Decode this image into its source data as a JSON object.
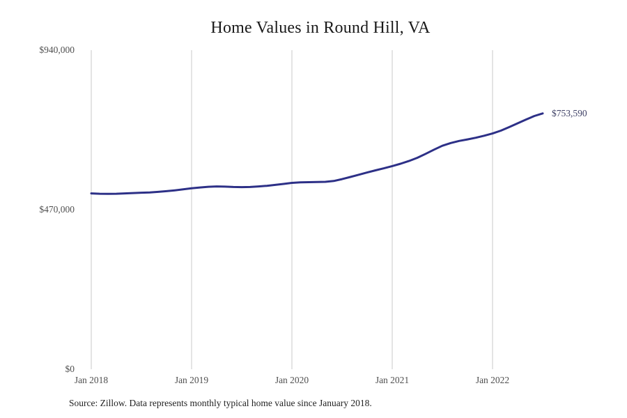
{
  "title": "Home Values in Round Hill, VA",
  "source_note": "Source: Zillow. Data represents monthly typical home value since January 2018.",
  "colors": {
    "line": "#2d3087",
    "grid": "#c9c9c9",
    "end_label": "#3f4166",
    "axis_text": "#4f4f4f",
    "title": "#1a1a1a",
    "source_text": "#222222",
    "background": "#ffffff"
  },
  "chart_data": {
    "type": "line",
    "title": "Home Values in Round Hill, VA",
    "xlabel": "",
    "ylabel": "",
    "ylim": [
      0,
      940000
    ],
    "grid": "vertical-only",
    "legend": "none",
    "x_interval": "1 month",
    "x_start_month": "2018-01",
    "x_end_month": "2022-07",
    "x_tick_labels": [
      "Jan 2018",
      "Jan 2019",
      "Jan 2020",
      "Jan 2021",
      "Jan 2022"
    ],
    "months_per_x_tick": 12,
    "y_ticks": [
      {
        "value": 0,
        "label": "$0"
      },
      {
        "value": 470000,
        "label": "$470,000"
      },
      {
        "value": 940000,
        "label": "$940,000"
      }
    ],
    "last_value_label": "$753,590",
    "series": [
      {
        "name": "Typical home value",
        "months": [
          "2018-01",
          "2018-02",
          "2018-03",
          "2018-04",
          "2018-05",
          "2018-06",
          "2018-07",
          "2018-08",
          "2018-09",
          "2018-10",
          "2018-11",
          "2018-12",
          "2019-01",
          "2019-02",
          "2019-03",
          "2019-04",
          "2019-05",
          "2019-06",
          "2019-07",
          "2019-08",
          "2019-09",
          "2019-10",
          "2019-11",
          "2019-12",
          "2020-01",
          "2020-02",
          "2020-03",
          "2020-04",
          "2020-05",
          "2020-06",
          "2020-07",
          "2020-08",
          "2020-09",
          "2020-10",
          "2020-11",
          "2020-12",
          "2021-01",
          "2021-02",
          "2021-03",
          "2021-04",
          "2021-05",
          "2021-06",
          "2021-07",
          "2021-08",
          "2021-09",
          "2021-10",
          "2021-11",
          "2021-12",
          "2022-01",
          "2022-02",
          "2022-03",
          "2022-04",
          "2022-05",
          "2022-06",
          "2022-07"
        ],
        "values": [
          518000,
          517000,
          516500,
          517000,
          518000,
          519000,
          520000,
          521000,
          522500,
          524500,
          527000,
          530000,
          533000,
          535500,
          537500,
          538500,
          538000,
          537000,
          536500,
          537000,
          538500,
          540500,
          543000,
          546000,
          549000,
          550500,
          551000,
          551500,
          552000,
          554500,
          560000,
          566500,
          573000,
          579500,
          586000,
          592000,
          598500,
          605500,
          613500,
          623000,
          634500,
          647000,
          658500,
          666500,
          672500,
          677000,
          682000,
          688000,
          694500,
          703000,
          713500,
          724500,
          735500,
          746000,
          753590
        ]
      }
    ]
  }
}
